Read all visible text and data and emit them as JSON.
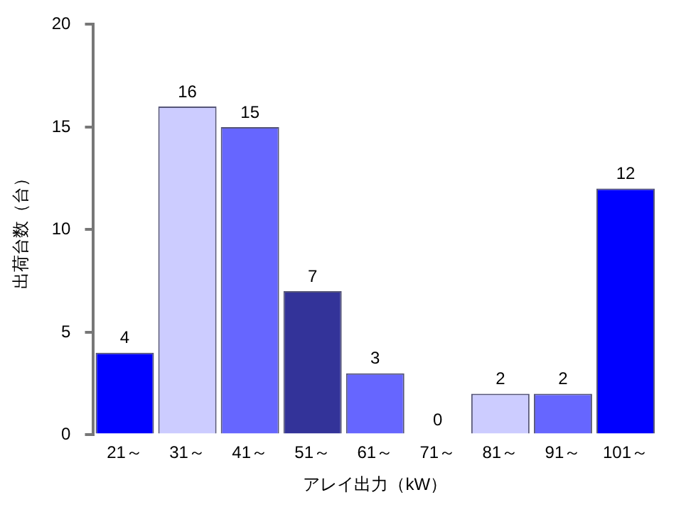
{
  "chart_data": {
    "type": "bar",
    "xlabel": "アレイ出力（kW）",
    "ylabel": "出荷台数（台）",
    "categories": [
      "21～",
      "31～",
      "41～",
      "51～",
      "61～",
      "71～",
      "81～",
      "91～",
      "101～"
    ],
    "values": [
      4,
      16,
      15,
      7,
      3,
      0,
      2,
      2,
      12
    ],
    "colors": [
      "#0000ff",
      "#ccccff",
      "#6666ff",
      "#333399",
      "#6666ff",
      "#6666ff",
      "#ccccff",
      "#6666ff",
      "#0000ff"
    ],
    "ylim": [
      0,
      20
    ],
    "yticks": [
      0,
      5,
      10,
      15,
      20
    ],
    "grid": false,
    "legend": false,
    "data_labels": true
  }
}
